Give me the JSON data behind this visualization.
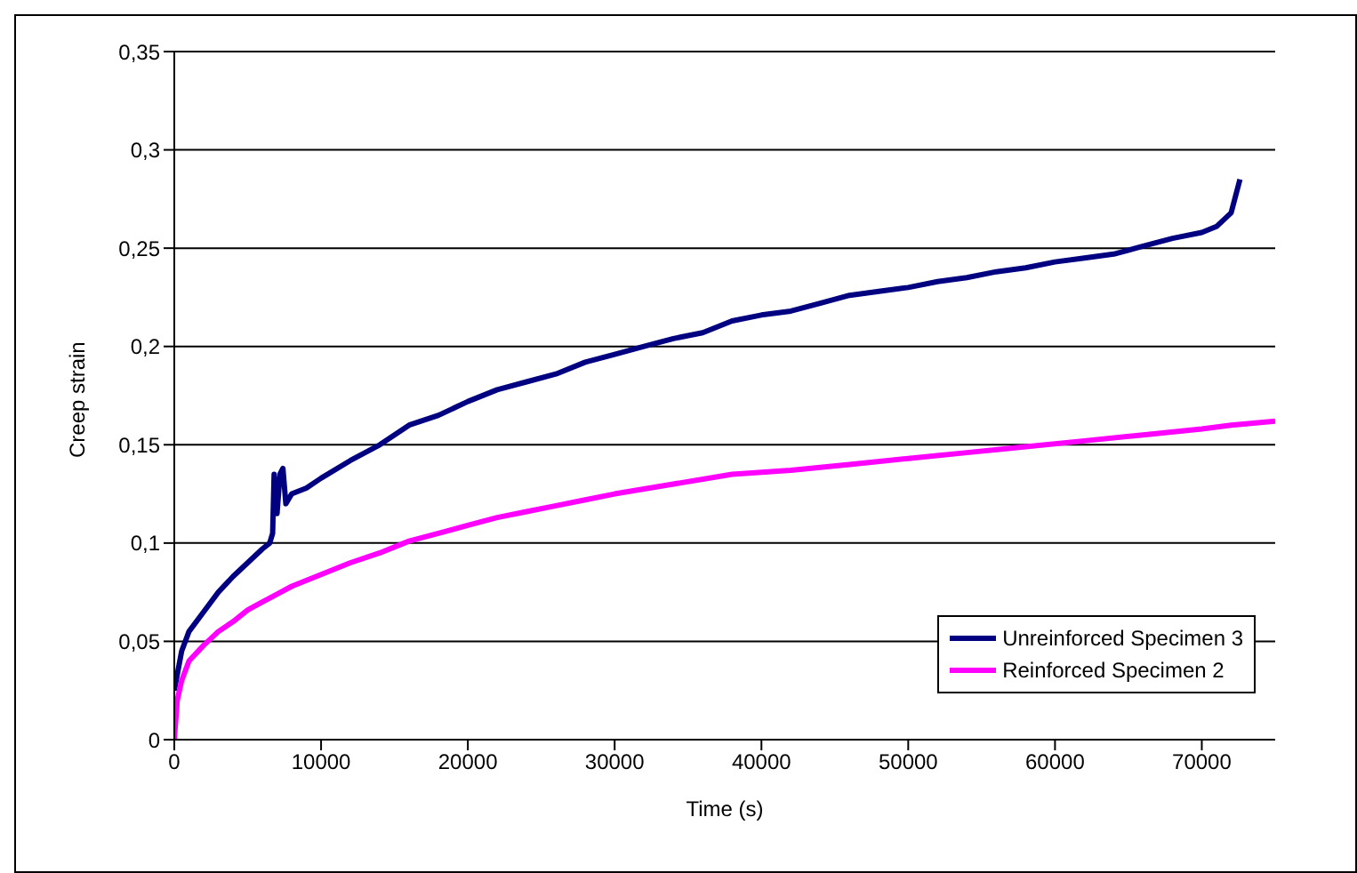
{
  "chart_data": {
    "type": "line",
    "xlabel": "Time (s)",
    "ylabel": "Creep strain",
    "xlim": [
      0,
      75000
    ],
    "xticks": [
      0,
      10000,
      20000,
      30000,
      40000,
      50000,
      60000,
      70000
    ],
    "ylim": [
      0,
      0.35
    ],
    "yticks": [
      0,
      {
        "value": 0.05,
        "label": "0,05"
      },
      {
        "value": 0.1,
        "label": "0,1"
      },
      {
        "value": 0.15,
        "label": "0,15"
      },
      {
        "value": 0.2,
        "label": "0,2"
      },
      {
        "value": 0.25,
        "label": "0,25"
      },
      {
        "value": 0.3,
        "label": "0,3"
      },
      {
        "value": 0.35,
        "label": "0,35"
      }
    ],
    "grid": "y",
    "legend": "bottom right",
    "marker": "none",
    "line_style": "solid",
    "series": [
      {
        "name": "Unreinforced Specimen 3",
        "color": "#000080",
        "x": [
          0,
          500,
          1000,
          2000,
          3000,
          4000,
          5000,
          6000,
          6500,
          6700,
          6800,
          7000,
          7200,
          7400,
          7600,
          8000,
          9000,
          10000,
          12000,
          14000,
          16000,
          18000,
          20000,
          22000,
          24000,
          26000,
          28000,
          30000,
          32000,
          34000,
          36000,
          38000,
          40000,
          42000,
          44000,
          46000,
          48000,
          50000,
          52000,
          54000,
          56000,
          58000,
          60000,
          62000,
          64000,
          66000,
          68000,
          70000,
          71000,
          72000,
          72600
        ],
        "values": [
          0.025,
          0.045,
          0.055,
          0.065,
          0.075,
          0.083,
          0.09,
          0.097,
          0.1,
          0.105,
          0.135,
          0.115,
          0.135,
          0.138,
          0.12,
          0.125,
          0.128,
          0.133,
          0.142,
          0.15,
          0.16,
          0.165,
          0.172,
          0.178,
          0.182,
          0.186,
          0.192,
          0.196,
          0.2,
          0.204,
          0.207,
          0.213,
          0.216,
          0.218,
          0.222,
          0.226,
          0.228,
          0.23,
          0.233,
          0.235,
          0.238,
          0.24,
          0.243,
          0.245,
          0.247,
          0.251,
          0.255,
          0.258,
          0.261,
          0.268,
          0.285
        ]
      },
      {
        "name": "Reinforced Specimen 2",
        "color": "#ff00ff",
        "x": [
          0,
          200,
          500,
          1000,
          2000,
          3000,
          4000,
          5000,
          6000,
          7000,
          8000,
          10000,
          12000,
          14000,
          16000,
          18000,
          20000,
          22000,
          24000,
          26000,
          28000,
          30000,
          34000,
          38000,
          42000,
          46000,
          50000,
          54000,
          58000,
          62000,
          66000,
          70000,
          72000,
          75000
        ],
        "values": [
          0,
          0.02,
          0.03,
          0.04,
          0.048,
          0.055,
          0.06,
          0.066,
          0.07,
          0.074,
          0.078,
          0.084,
          0.09,
          0.095,
          0.101,
          0.105,
          0.109,
          0.113,
          0.116,
          0.119,
          0.122,
          0.125,
          0.13,
          0.135,
          0.137,
          0.14,
          0.143,
          0.146,
          0.149,
          0.152,
          0.155,
          0.158,
          0.16,
          0.162
        ]
      }
    ]
  }
}
